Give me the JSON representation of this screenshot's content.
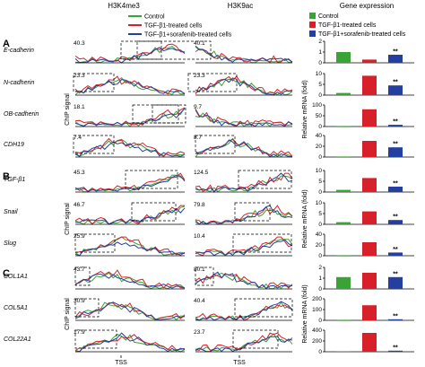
{
  "column_headers": {
    "h3k4me3": "H3K4me3",
    "h3k9ac": "H3K9ac",
    "gene_expression": "Gene expression"
  },
  "legend": [
    {
      "label": "Control",
      "color": "#3aa335"
    },
    {
      "label": "TGF-β1-treated cells",
      "color": "#d8202a"
    },
    {
      "label": "TGF-β1+sorafenib-treated cells",
      "color": "#233fa0"
    }
  ],
  "panels": [
    {
      "letter": "A",
      "genes": [
        "E-cadherin",
        "N-cadherin",
        "OB-cadherin",
        "CDH19"
      ],
      "h3k4me3_max": [
        "40.3",
        "23.3",
        "18.1",
        "7.4"
      ],
      "h3k9ac_max": [
        "40.1",
        "23.3",
        "9.7",
        "8.7"
      ]
    },
    {
      "letter": "B",
      "genes": [
        "TGF-β1",
        "Snail",
        "Slug"
      ],
      "h3k4me3_max": [
        "45.3",
        "46.7",
        "25.9"
      ],
      "h3k9ac_max": [
        "124.5",
        "79.8",
        "10.4"
      ]
    },
    {
      "letter": "C",
      "genes": [
        "COL1A1",
        "COL5A1",
        "COL22A1"
      ],
      "h3k4me3_max": [
        "43.7",
        "30.9",
        "17.9"
      ],
      "h3k9ac_max": [
        "80.1",
        "40.4",
        "23.7"
      ]
    }
  ],
  "axis_labels": {
    "chip_signal": "ChIP signal",
    "relative_mrna": "Relative mRNA (fold)",
    "tss": "TSS"
  },
  "significance": "**",
  "chart_data": [
    {
      "type": "bar",
      "title": "",
      "gene": "E-cadherin",
      "categories": [
        "Control",
        "TGF-β1-treated cells",
        "TGF-β1+sorafenib-treated cells"
      ],
      "values": [
        1.0,
        0.3,
        0.75
      ],
      "ylim": [
        0,
        2
      ],
      "yticks": [
        "0",
        "1",
        "2"
      ],
      "ylabel": "Relative mRNA (fold)",
      "significant": [
        false,
        false,
        true
      ]
    },
    {
      "type": "bar",
      "title": "",
      "gene": "N-cadherin",
      "categories": [
        "Control",
        "TGF-β1-treated cells",
        "TGF-β1+sorafenib-treated cells"
      ],
      "values": [
        1,
        9,
        4.5
      ],
      "ylim": [
        0,
        10
      ],
      "yticks": [
        "0",
        "5",
        "10"
      ],
      "ylabel": "Relative mRNA (fold)",
      "significant": [
        false,
        false,
        true
      ]
    },
    {
      "type": "bar",
      "title": "",
      "gene": "OB-cadherin",
      "categories": [
        "Control",
        "TGF-β1-treated cells",
        "TGF-β1+sorafenib-treated cells"
      ],
      "values": [
        1,
        80,
        8
      ],
      "ylim": [
        0,
        100
      ],
      "yticks": [
        "0",
        "50",
        "100"
      ],
      "ylabel": "Relative mRNA (fold)",
      "significant": [
        false,
        false,
        true
      ]
    },
    {
      "type": "bar",
      "title": "",
      "gene": "CDH19",
      "categories": [
        "Control",
        "TGF-β1-treated cells",
        "TGF-β1+sorafenib-treated cells"
      ],
      "values": [
        1,
        30,
        18
      ],
      "ylim": [
        0,
        40
      ],
      "yticks": [
        "0",
        "20",
        "40"
      ],
      "ylabel": "Relative mRNA (fold)",
      "significant": [
        false,
        false,
        true
      ]
    },
    {
      "type": "bar",
      "title": "",
      "gene": "TGF-β1",
      "categories": [
        "Control",
        "TGF-β1-treated cells",
        "TGF-β1+sorafenib-treated cells"
      ],
      "values": [
        1,
        6.5,
        2.5
      ],
      "ylim": [
        0,
        10
      ],
      "yticks": [
        "0",
        "5",
        "10"
      ],
      "ylabel": "Relative mRNA (fold)",
      "significant": [
        false,
        false,
        true
      ]
    },
    {
      "type": "bar",
      "title": "",
      "gene": "Snail",
      "categories": [
        "Control",
        "TGF-β1-treated cells",
        "TGF-β1+sorafenib-treated cells"
      ],
      "values": [
        1,
        6,
        2
      ],
      "ylim": [
        0,
        10
      ],
      "yticks": [
        "0",
        "5",
        "10"
      ],
      "ylabel": "Relative mRNA (fold)",
      "significant": [
        false,
        false,
        true
      ]
    },
    {
      "type": "bar",
      "title": "",
      "gene": "Slug",
      "categories": [
        "Control",
        "TGF-β1-treated cells",
        "TGF-β1+sorafenib-treated cells"
      ],
      "values": [
        1,
        25,
        6
      ],
      "ylim": [
        0,
        40
      ],
      "yticks": [
        "0",
        "20",
        "40"
      ],
      "ylabel": "Relative mRNA (fold)",
      "significant": [
        false,
        false,
        true
      ]
    },
    {
      "type": "bar",
      "title": "",
      "gene": "COL1A1",
      "categories": [
        "Control",
        "TGF-β1-treated cells",
        "TGF-β1+sorafenib-treated cells"
      ],
      "values": [
        1.1,
        1.5,
        1.1
      ],
      "ylim": [
        0,
        2
      ],
      "yticks": [
        "0",
        "1",
        "2"
      ],
      "ylabel": "Relative mRNA (fold)",
      "significant": [
        false,
        false,
        true
      ]
    },
    {
      "type": "bar",
      "title": "",
      "gene": "COL5A1",
      "categories": [
        "Control",
        "TGF-β1-treated cells",
        "TGF-β1+sorafenib-treated cells"
      ],
      "values": [
        2,
        140,
        10
      ],
      "ylim": [
        0,
        200
      ],
      "yticks": [
        "0",
        "100",
        "200"
      ],
      "ylabel": "Relative mRNA (fold)",
      "significant": [
        false,
        false,
        true
      ]
    },
    {
      "type": "bar",
      "title": "",
      "gene": "COL22A1",
      "categories": [
        "Control",
        "TGF-β1-treated cells",
        "TGF-β1+sorafenib-treated cells"
      ],
      "values": [
        2,
        350,
        20
      ],
      "ylim": [
        0,
        400
      ],
      "yticks": [
        "0",
        "200",
        "400"
      ],
      "ylabel": "Relative mRNA (fold)",
      "significant": [
        false,
        false,
        true
      ]
    }
  ]
}
